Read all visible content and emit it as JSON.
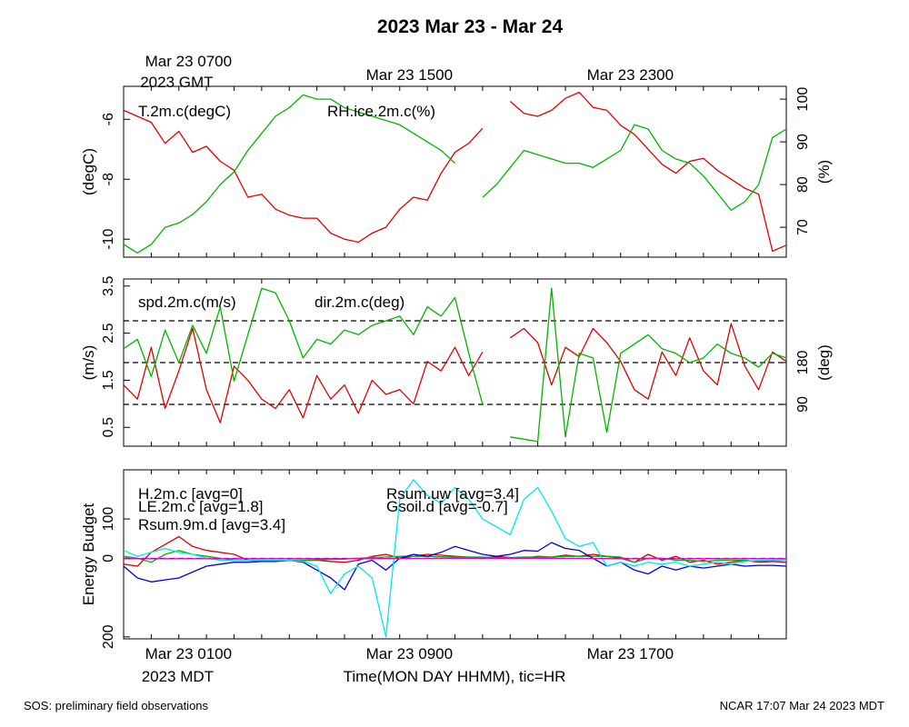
{
  "title": "2023 Mar 23 - Mar 24",
  "footer": {
    "left": "SOS: preliminary field observations",
    "right": "NCAR 17:07 Mar 24 2023 MDT"
  },
  "colors": {
    "red": "#e00000",
    "green": "#00b400",
    "blue": "#0000d8",
    "cyan": "#00e8ee",
    "magenta": "#e000e0"
  },
  "chart_data": [
    {
      "type": "line",
      "panel": "temperature-humidity",
      "x_domain": [
        0,
        24
      ],
      "top_axis": {
        "ticks": [
          {
            "x": 1,
            "line1": "Mar 23 0700",
            "line2": "2023 GMT"
          },
          {
            "x": 9,
            "line1": "Mar 23 1500",
            "line2": ""
          },
          {
            "x": 17,
            "line1": "Mar 23 2300",
            "line2": ""
          }
        ]
      },
      "y_left": {
        "label": "(degC)",
        "range": [
          -10.6,
          -4.9
        ],
        "ticks": [
          -6,
          -8,
          -10
        ]
      },
      "y_right": {
        "label": "(%)",
        "range": [
          63,
          103
        ],
        "ticks": [
          70,
          80,
          90,
          100
        ]
      },
      "legend": [
        {
          "text": "T.2m.c(degC)",
          "color": "#e00000"
        },
        {
          "text": "RH.ice.2m.c(%)",
          "color": "#00b400"
        }
      ],
      "series": [
        {
          "name": "T.2m.c",
          "axis": "left",
          "color": "#e00000",
          "x": [
            0,
            0.5,
            1,
            1.5,
            2,
            2.5,
            3,
            3.5,
            4,
            4.5,
            5,
            5.5,
            6,
            6.5,
            7,
            7.5,
            8,
            8.5,
            9,
            9.5,
            10,
            10.5,
            11,
            11.5,
            12,
            12.5,
            13,
            13.5,
            14,
            14.5,
            15,
            15.5,
            16,
            16.5,
            17,
            17.5,
            18,
            18.5,
            19,
            19.5,
            20,
            20.5,
            21,
            21.5,
            22,
            22.5,
            23,
            23.5,
            24
          ],
          "y": [
            -5.7,
            -5.9,
            -6.1,
            -6.8,
            -6.4,
            -7.1,
            -6.9,
            -7.4,
            -7.7,
            -8.6,
            -8.5,
            -9.0,
            -9.2,
            -9.3,
            -9.3,
            -9.8,
            -10.0,
            -10.1,
            -9.8,
            -9.6,
            -9.0,
            -8.6,
            -8.7,
            -7.8,
            -7.1,
            -6.8,
            -6.3,
            null,
            -5.4,
            -5.8,
            -5.9,
            -5.7,
            -5.3,
            -5.1,
            -5.6,
            -5.7,
            -6.2,
            -6.5,
            -7.0,
            -7.5,
            -7.8,
            -7.4,
            -7.3,
            -7.7,
            -8.0,
            -8.3,
            -8.5,
            -10.4,
            -10.2
          ]
        },
        {
          "name": "RH.ice.2m.c",
          "axis": "right",
          "color": "#00b400",
          "x": [
            0,
            0.5,
            1,
            1.5,
            2,
            2.5,
            3,
            3.5,
            4,
            4.5,
            5,
            5.5,
            6,
            6.5,
            7,
            7.5,
            8,
            8.5,
            9,
            9.5,
            10,
            10.5,
            11,
            11.5,
            12,
            12.5,
            13,
            13.5,
            14,
            14.5,
            15,
            15.5,
            16,
            16.5,
            17,
            17.5,
            18,
            18.5,
            19,
            19.5,
            20,
            20.5,
            21,
            21.5,
            22,
            22.5,
            23,
            23.5,
            24
          ],
          "y": [
            66,
            64,
            66,
            70,
            71,
            73,
            76,
            80,
            83,
            88,
            92,
            96,
            98,
            101,
            100,
            100,
            98,
            97,
            96,
            95,
            94,
            92,
            90,
            88,
            85,
            null,
            77,
            80,
            84,
            88,
            87,
            86,
            85,
            85,
            84,
            86,
            88,
            94,
            93,
            88,
            86,
            85,
            82,
            78,
            74,
            76,
            80,
            91,
            93
          ]
        }
      ]
    },
    {
      "type": "line",
      "panel": "wind",
      "x_domain": [
        0,
        24
      ],
      "y_left": {
        "label": "(m/s)",
        "range": [
          0.1,
          3.65
        ],
        "ticks": [
          0.5,
          1.5,
          2.5,
          3.5
        ],
        "tick_labels": [
          "0.5",
          "1.5",
          "2.5",
          "3.5"
        ]
      },
      "y_right": {
        "label": "(deg)",
        "range": [
          0,
          360
        ],
        "ticks": [
          90,
          180
        ]
      },
      "reference_lines_deg": [
        90,
        180,
        270
      ],
      "legend": [
        {
          "text": "spd.2m.c(m/s)",
          "color": "#e00000"
        },
        {
          "text": "dir.2m.c(deg)",
          "color": "#00b400"
        }
      ],
      "series": [
        {
          "name": "spd.2m.c",
          "axis": "left",
          "color": "#e00000",
          "x": [
            0,
            0.5,
            1,
            1.5,
            2,
            2.5,
            3,
            3.5,
            4,
            4.5,
            5,
            5.5,
            6,
            6.5,
            7,
            7.5,
            8,
            8.5,
            9,
            9.5,
            10,
            10.5,
            11,
            11.5,
            12,
            12.5,
            13,
            13.5,
            14,
            14.5,
            15,
            15.5,
            16,
            16.5,
            17,
            17.5,
            18,
            18.5,
            19,
            19.5,
            20,
            20.5,
            21,
            21.5,
            22,
            22.5,
            23,
            23.5,
            24
          ],
          "y": [
            1.4,
            1.1,
            2.2,
            0.9,
            1.7,
            2.6,
            1.3,
            0.6,
            1.8,
            1.5,
            1.1,
            0.9,
            1.3,
            0.7,
            1.6,
            1.1,
            1.4,
            0.8,
            1.5,
            1.2,
            1.3,
            1.0,
            1.9,
            1.7,
            2.2,
            1.6,
            2.1,
            null,
            2.4,
            2.6,
            2.3,
            1.4,
            2.2,
            2.0,
            2.6,
            2.3,
            1.9,
            1.3,
            1.1,
            2.1,
            1.6,
            2.4,
            1.7,
            1.4,
            2.7,
            1.8,
            1.3,
            2.1,
            1.9
          ]
        },
        {
          "name": "dir.2m.c",
          "axis": "right",
          "color": "#00b400",
          "x": [
            0,
            0.5,
            1,
            1.5,
            2,
            2.5,
            3,
            3.5,
            4,
            4.5,
            5,
            5.5,
            6,
            6.5,
            7,
            7.5,
            8,
            8.5,
            9,
            9.5,
            10,
            10.5,
            11,
            11.5,
            12,
            12.5,
            13,
            13.5,
            14,
            14.5,
            15,
            15.5,
            16,
            16.5,
            17,
            17.5,
            18,
            18.5,
            19,
            19.5,
            20,
            20.5,
            21,
            21.5,
            22,
            22.5,
            23,
            23.5,
            24
          ],
          "y": [
            210,
            230,
            150,
            250,
            180,
            260,
            200,
            300,
            140,
            240,
            340,
            330,
            270,
            190,
            230,
            220,
            250,
            240,
            260,
            270,
            280,
            240,
            300,
            280,
            320,
            200,
            90,
            null,
            20,
            15,
            10,
            340,
            20,
            200,
            190,
            30,
            200,
            220,
            240,
            210,
            200,
            180,
            190,
            220,
            200,
            190,
            170,
            200,
            190
          ]
        }
      ]
    },
    {
      "type": "line",
      "panel": "energy-budget",
      "x_domain": [
        0,
        24
      ],
      "bottom_axis": {
        "ticks": [
          {
            "x": 1,
            "line1": "Mar 23 0100",
            "line2": "2023 MDT"
          },
          {
            "x": 9,
            "line1": "Mar 23 0900",
            "line2": ""
          },
          {
            "x": 17,
            "line1": "Mar 23 1700",
            "line2": ""
          }
        ],
        "xlabel": "Time(MON DAY HHMM), tic=HR"
      },
      "y_left": {
        "label": "Energy Budget",
        "range": [
          -205,
          225
        ],
        "ticks": [
          -200,
          0,
          100
        ],
        "tick_labels": [
          "200",
          "0",
          "100"
        ]
      },
      "legend": [
        {
          "text": "H.2m.c [avg=0]",
          "color": "#e00000"
        },
        {
          "text": "LE.2m.c [avg=1.8]",
          "color": "#00b400"
        },
        {
          "text": "Rsum.9m.d [avg=3.4]",
          "color": "#0000d8"
        },
        {
          "text": "Rsum.uw [avg=3.4]",
          "color": "#00e8ee"
        },
        {
          "text": "Gsoil.d [avg=-0.7]",
          "color": "#e000e0"
        }
      ],
      "series": [
        {
          "name": "H.2m.c",
          "color": "#e00000",
          "x": [
            0,
            0.5,
            1,
            1.5,
            2,
            2.5,
            3,
            3.5,
            4,
            4.5,
            5,
            5.5,
            6,
            6.5,
            7,
            7.5,
            8,
            8.5,
            9,
            9.5,
            10,
            10.5,
            11,
            11.5,
            12,
            12.5,
            13,
            13.5,
            14,
            14.5,
            15,
            15.5,
            16,
            16.5,
            17,
            17.5,
            18,
            18.5,
            19,
            19.5,
            20,
            20.5,
            21,
            21.5,
            22,
            22.5,
            23,
            23.5,
            24
          ],
          "y": [
            -15,
            -20,
            15,
            35,
            55,
            30,
            20,
            15,
            10,
            -5,
            -5,
            -8,
            -5,
            -6,
            -5,
            -8,
            -10,
            -5,
            5,
            10,
            0,
            5,
            10,
            8,
            5,
            3,
            0,
            5,
            2,
            0,
            5,
            3,
            8,
            5,
            10,
            5,
            0,
            -10,
            10,
            -5,
            5,
            -10,
            -5,
            -15,
            -10,
            -5,
            -10,
            -8,
            -10
          ]
        },
        {
          "name": "LE.2m.c",
          "color": "#00b400",
          "x": [
            0,
            0.5,
            1,
            1.5,
            2,
            2.5,
            3,
            3.5,
            4,
            4.5,
            5,
            5.5,
            6,
            6.5,
            7,
            7.5,
            8,
            8.5,
            9,
            9.5,
            10,
            10.5,
            11,
            11.5,
            12,
            12.5,
            13,
            13.5,
            14,
            14.5,
            15,
            15.5,
            16,
            16.5,
            17,
            17.5,
            18,
            18.5,
            19,
            19.5,
            20,
            20.5,
            21,
            21.5,
            22,
            22.5,
            23,
            23.5,
            24
          ],
          "y": [
            5,
            0,
            -10,
            10,
            20,
            10,
            5,
            0,
            -5,
            -5,
            -8,
            -6,
            -5,
            -5,
            -4,
            -3,
            -2,
            0,
            2,
            3,
            5,
            5,
            5,
            4,
            3,
            3,
            3,
            2,
            2,
            3,
            3,
            3,
            5,
            5,
            5,
            5,
            3,
            -10,
            0,
            0,
            -5,
            -5,
            -8,
            -5,
            -5,
            -5,
            -8,
            -5,
            -5
          ]
        },
        {
          "name": "Rsum.9m.d",
          "color": "#0000d8",
          "x": [
            0,
            0.5,
            1,
            1.5,
            2,
            2.5,
            3,
            3.5,
            4,
            4.5,
            5,
            5.5,
            6,
            6.5,
            7,
            7.5,
            8,
            8.5,
            9,
            9.5,
            10,
            10.5,
            11,
            11.5,
            12,
            12.5,
            13,
            13.5,
            14,
            14.5,
            15,
            15.5,
            16,
            16.5,
            17,
            17.5,
            18,
            18.5,
            19,
            19.5,
            20,
            20.5,
            21,
            21.5,
            22,
            22.5,
            23,
            23.5,
            24
          ],
          "y": [
            -20,
            -50,
            -60,
            -55,
            -50,
            -35,
            -20,
            -15,
            -10,
            -10,
            -8,
            -8,
            -5,
            -10,
            -30,
            -50,
            -80,
            -15,
            -5,
            -30,
            0,
            10,
            5,
            15,
            30,
            20,
            10,
            5,
            10,
            20,
            18,
            40,
            25,
            20,
            0,
            -20,
            -10,
            -30,
            -40,
            -20,
            -30,
            -20,
            -25,
            -20,
            -15,
            -20,
            -18,
            -18,
            -20
          ]
        },
        {
          "name": "Rsum.uw",
          "color": "#00e8ee",
          "x": [
            0,
            0.5,
            1,
            1.5,
            2,
            2.5,
            3,
            3.5,
            4,
            4.5,
            5,
            5.5,
            6,
            6.5,
            7,
            7.5,
            8,
            8.5,
            9,
            9.5,
            10,
            10.5,
            11,
            11.5,
            12,
            12.5,
            13,
            13.5,
            14,
            14.5,
            15,
            15.5,
            16,
            16.5,
            17,
            17.5,
            18,
            18.5,
            19,
            19.5,
            20,
            20.5,
            21,
            21.5,
            22,
            22.5,
            23,
            23.5,
            24
          ],
          "y": [
            20,
            5,
            15,
            25,
            15,
            10,
            0,
            -5,
            -5,
            -6,
            -5,
            -5,
            -5,
            -8,
            -20,
            -90,
            -40,
            -20,
            -50,
            -200,
            150,
            200,
            160,
            140,
            180,
            150,
            100,
            80,
            60,
            150,
            180,
            120,
            50,
            30,
            40,
            -20,
            -10,
            -20,
            -10,
            -15,
            -10,
            -20,
            -15,
            -10,
            -15,
            -8,
            -5,
            -5,
            -5
          ]
        },
        {
          "name": "Gsoil.d",
          "color": "#e000e0",
          "x": [
            0,
            3,
            6,
            9,
            12,
            15,
            18,
            21,
            24
          ],
          "y": [
            -1,
            -1,
            -1,
            -1,
            0,
            0,
            -1,
            -1,
            -1
          ]
        }
      ]
    }
  ]
}
